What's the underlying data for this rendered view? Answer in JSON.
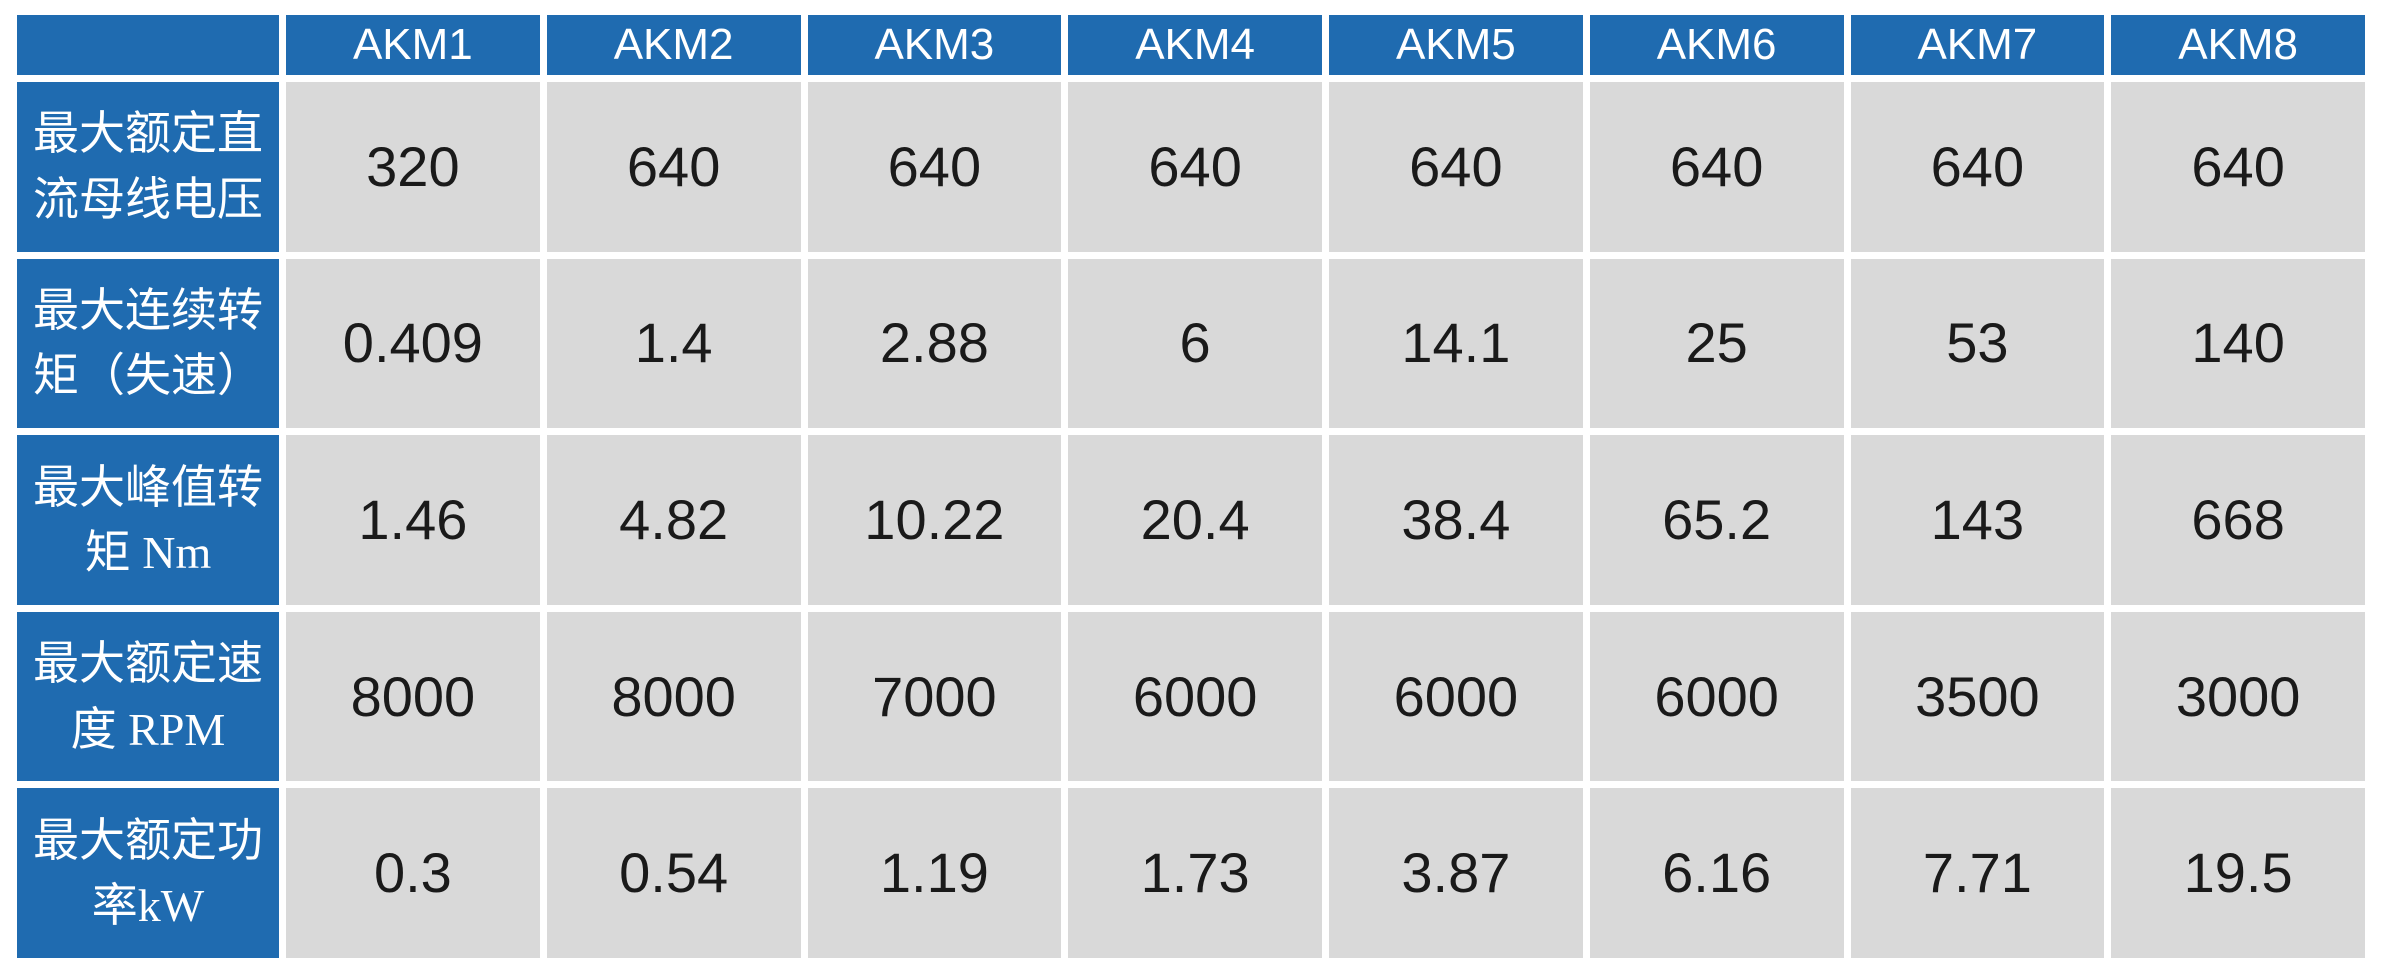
{
  "table": {
    "corner_label": "",
    "columns": [
      "AKM1",
      "AKM2",
      "AKM3",
      "AKM4",
      "AKM5",
      "AKM6",
      "AKM7",
      "AKM8"
    ],
    "rows": [
      {
        "label": "最大额定直流母线电压",
        "values": [
          "320",
          "640",
          "640",
          "640",
          "640",
          "640",
          "640",
          "640"
        ]
      },
      {
        "label": "最大连续转矩（失速）",
        "values": [
          "0.409",
          "1.4",
          "2.88",
          "6",
          "14.1",
          "25",
          "53",
          "140"
        ]
      },
      {
        "label": "最大峰值转矩 Nm",
        "values": [
          "1.46",
          "4.82",
          "10.22",
          "20.4",
          "38.4",
          "65.2",
          "143",
          "668"
        ]
      },
      {
        "label": "最大额定速度 RPM",
        "values": [
          "8000",
          "8000",
          "7000",
          "6000",
          "6000",
          "6000",
          "3500",
          "3000"
        ]
      },
      {
        "label": "最大额定功率kW",
        "values": [
          "0.3",
          "0.54",
          "1.19",
          "1.73",
          "3.87",
          "6.16",
          "7.71",
          "19.5"
        ]
      }
    ]
  },
  "colors": {
    "header_blue": "#1F6BB0",
    "cell_gray": "#D9D9D9",
    "header_text": "#FFFFFF",
    "value_text": "#1A1A1A",
    "grid_gap": "#FFFFFF"
  },
  "chart_data": {
    "type": "table",
    "columns": [
      "AKM1",
      "AKM2",
      "AKM3",
      "AKM4",
      "AKM5",
      "AKM6",
      "AKM7",
      "AKM8"
    ],
    "rows": [
      {
        "label": "最大额定直流母线电压",
        "values": [
          320,
          640,
          640,
          640,
          640,
          640,
          640,
          640
        ]
      },
      {
        "label": "最大连续转矩（失速）",
        "values": [
          0.409,
          1.4,
          2.88,
          6,
          14.1,
          25,
          53,
          140
        ]
      },
      {
        "label": "最大峰值转矩 Nm",
        "values": [
          1.46,
          4.82,
          10.22,
          20.4,
          38.4,
          65.2,
          143,
          668
        ]
      },
      {
        "label": "最大额定速度 RPM",
        "values": [
          8000,
          8000,
          7000,
          6000,
          6000,
          6000,
          3500,
          3000
        ]
      },
      {
        "label": "最大额定功率kW",
        "values": [
          0.3,
          0.54,
          1.19,
          1.73,
          3.87,
          6.16,
          7.71,
          19.5
        ]
      }
    ]
  }
}
